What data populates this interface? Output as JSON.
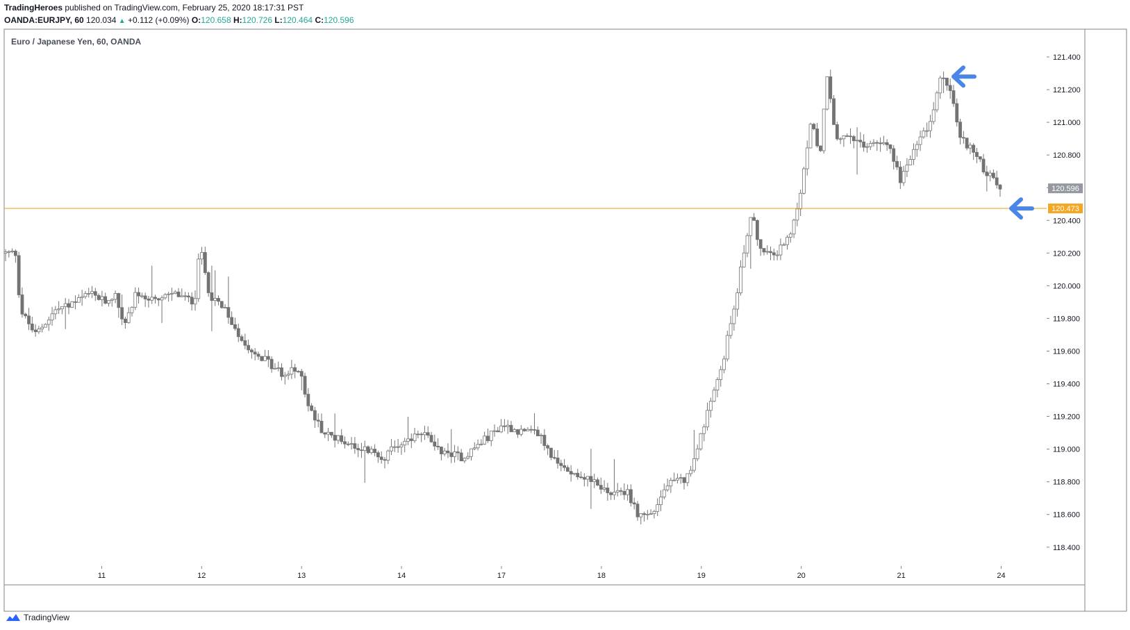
{
  "header": {
    "author": "TradingHeroes",
    "published": "published on TradingView.com, February 25, 2020 18:17:31 PST",
    "symbol": "OANDA:EURJPY, 60",
    "last": "120.034",
    "change": "+0.112 (+0.09%)",
    "o_label": "O:",
    "o_value": "120.658",
    "h_label": "H:",
    "h_value": "120.726",
    "l_label": "L:",
    "l_value": "120.464",
    "c_label": "C:",
    "c_value": "120.596"
  },
  "footer": {
    "brand": "TradingView"
  },
  "colors": {
    "candle": "#737375",
    "level": "#f5a623",
    "arrow": "#4a86e8",
    "price_badge": "#9598a1"
  },
  "chart_data": {
    "type": "candlestick",
    "title": "Euro / Japanese Yen, 60, OANDA",
    "ylim": [
      118.25,
      121.6
    ],
    "y_ticks": [
      "121.400",
      "121.200",
      "121.000",
      "120.800",
      "120.600",
      "120.400",
      "120.200",
      "120.000",
      "119.800",
      "119.600",
      "119.400",
      "119.200",
      "119.000",
      "118.800",
      "118.600",
      "118.400"
    ],
    "x_ticks": [
      {
        "label": "11",
        "pos": 1
      },
      {
        "label": "12",
        "pos": 2
      },
      {
        "label": "13",
        "pos": 3
      },
      {
        "label": "14",
        "pos": 4
      },
      {
        "label": "17",
        "pos": 5
      },
      {
        "label": "18",
        "pos": 6
      },
      {
        "label": "19",
        "pos": 7
      },
      {
        "label": "20",
        "pos": 8
      },
      {
        "label": "21",
        "pos": 9
      },
      {
        "label": "24",
        "pos": 10
      }
    ],
    "current_price": "120.596",
    "horizontal_level": {
      "value": 120.473,
      "label": "120.473"
    },
    "annotations": [
      {
        "type": "arrow",
        "direction": "left",
        "at_value": 121.28,
        "near": "21"
      },
      {
        "type": "arrow",
        "direction": "left",
        "at_value": 120.473,
        "near": "24"
      }
    ],
    "price_path": [
      [
        0.0,
        120.2
      ],
      [
        0.1,
        120.2
      ],
      [
        0.15,
        119.85
      ],
      [
        0.3,
        119.7
      ],
      [
        0.5,
        119.85
      ],
      [
        0.7,
        119.9
      ],
      [
        0.85,
        119.95
      ],
      [
        1.0,
        119.9
      ],
      [
        1.1,
        119.95
      ],
      [
        1.2,
        119.75
      ],
      [
        1.3,
        119.95
      ],
      [
        1.5,
        119.9
      ],
      [
        1.7,
        119.95
      ],
      [
        1.9,
        119.9
      ],
      [
        1.95,
        120.25
      ],
      [
        2.05,
        119.95
      ],
      [
        2.2,
        119.85
      ],
      [
        2.4,
        119.65
      ],
      [
        2.6,
        119.55
      ],
      [
        2.8,
        119.45
      ],
      [
        2.95,
        119.5
      ],
      [
        3.05,
        119.25
      ],
      [
        3.2,
        119.1
      ],
      [
        3.4,
        119.05
      ],
      [
        3.6,
        119.0
      ],
      [
        3.8,
        118.95
      ],
      [
        4.0,
        119.05
      ],
      [
        4.2,
        119.1
      ],
      [
        4.4,
        118.98
      ],
      [
        4.6,
        118.95
      ],
      [
        4.8,
        119.05
      ],
      [
        5.0,
        119.15
      ],
      [
        5.2,
        119.1
      ],
      [
        5.35,
        119.1
      ],
      [
        5.55,
        118.9
      ],
      [
        5.75,
        118.85
      ],
      [
        5.9,
        118.8
      ],
      [
        6.1,
        118.72
      ],
      [
        6.25,
        118.75
      ],
      [
        6.35,
        118.6
      ],
      [
        6.5,
        118.6
      ],
      [
        6.65,
        118.78
      ],
      [
        6.85,
        118.82
      ],
      [
        7.05,
        119.2
      ],
      [
        7.2,
        119.5
      ],
      [
        7.35,
        119.95
      ],
      [
        7.45,
        120.3
      ],
      [
        7.5,
        120.45
      ],
      [
        7.6,
        120.2
      ],
      [
        7.75,
        120.2
      ],
      [
        7.9,
        120.3
      ],
      [
        8.0,
        120.6
      ],
      [
        8.1,
        121.0
      ],
      [
        8.2,
        120.8
      ],
      [
        8.25,
        121.3
      ],
      [
        8.35,
        120.9
      ],
      [
        8.5,
        120.9
      ],
      [
        8.65,
        120.85
      ],
      [
        8.85,
        120.9
      ],
      [
        9.0,
        120.65
      ],
      [
        9.15,
        120.85
      ],
      [
        9.3,
        121.0
      ],
      [
        9.4,
        121.28
      ],
      [
        9.5,
        121.2
      ],
      [
        9.6,
        120.9
      ],
      [
        9.7,
        120.85
      ],
      [
        9.85,
        120.7
      ],
      [
        10.0,
        120.6
      ]
    ]
  }
}
